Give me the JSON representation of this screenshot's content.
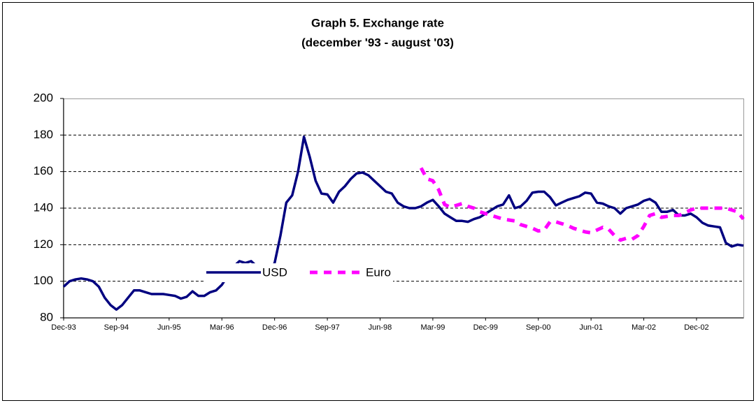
{
  "chart_data": {
    "type": "line",
    "title": "Graph 5. Exchange rate",
    "subtitle": "(december '93 - august '03)",
    "categories": [
      "Dec-93",
      null,
      null,
      null,
      null,
      null,
      null,
      null,
      null,
      "Sep-94",
      null,
      null,
      null,
      null,
      null,
      null,
      null,
      null,
      "Jun-95",
      null,
      null,
      null,
      null,
      null,
      null,
      null,
      null,
      "Mar-96",
      null,
      null,
      null,
      null,
      null,
      null,
      null,
      null,
      "Dec-96",
      null,
      null,
      null,
      null,
      null,
      null,
      null,
      null,
      "Sep-97",
      null,
      null,
      null,
      null,
      null,
      null,
      null,
      null,
      "Jun-98",
      null,
      null,
      null,
      null,
      null,
      null,
      null,
      null,
      "Mar-99",
      null,
      null,
      null,
      null,
      null,
      null,
      null,
      null,
      "Dec-99",
      null,
      null,
      null,
      null,
      null,
      null,
      null,
      null,
      "Sep-00",
      null,
      null,
      null,
      null,
      null,
      null,
      null,
      null,
      "Jun-01",
      null,
      null,
      null,
      null,
      null,
      null,
      null,
      null,
      "Mar-02",
      null,
      null,
      null,
      null,
      null,
      null,
      null,
      null,
      "Dec-02",
      null,
      null,
      null,
      null,
      null,
      null,
      null,
      null
    ],
    "series": [
      {
        "name": "USD",
        "color": "#000080",
        "values": [
          97,
          100,
          101,
          101.5,
          101,
          100,
          97,
          91,
          87,
          84.5,
          87,
          91,
          95,
          95,
          94,
          93,
          93,
          93,
          92.5,
          92,
          90.5,
          91.5,
          94.5,
          92,
          92,
          94,
          95,
          98,
          103,
          108,
          111,
          110,
          111,
          108,
          106,
          105,
          110,
          125,
          143,
          147,
          160,
          179,
          168,
          155,
          148,
          147.5,
          143,
          149,
          152,
          156,
          159,
          159.5,
          158,
          155,
          152,
          149,
          148,
          143,
          141,
          140,
          140,
          141,
          143,
          144.5,
          141,
          137,
          135,
          133,
          133,
          132.5,
          134,
          135,
          137,
          139,
          141,
          142,
          147,
          140,
          141,
          144,
          148.5,
          149,
          149,
          146,
          141.5,
          143,
          144.5,
          145.5,
          146.5,
          148.5,
          148,
          143,
          142.5,
          141,
          140,
          137,
          140,
          141,
          142,
          144,
          145,
          143,
          138,
          138,
          139,
          136,
          136,
          137,
          135,
          132,
          130.5,
          130,
          129.5,
          121,
          119,
          120,
          119.5
        ]
      },
      {
        "name": "Euro",
        "color": "#ff00ff",
        "values": [
          null,
          null,
          null,
          null,
          null,
          null,
          null,
          null,
          null,
          null,
          null,
          null,
          null,
          null,
          null,
          null,
          null,
          null,
          null,
          null,
          null,
          null,
          null,
          null,
          null,
          null,
          null,
          null,
          null,
          null,
          null,
          null,
          null,
          null,
          null,
          null,
          null,
          null,
          null,
          null,
          null,
          null,
          null,
          null,
          null,
          null,
          null,
          null,
          null,
          null,
          null,
          null,
          null,
          null,
          null,
          null,
          null,
          null,
          null,
          null,
          null,
          162,
          156,
          155,
          150,
          142,
          140.5,
          141.5,
          142.5,
          141,
          140,
          138,
          137,
          136,
          135,
          134,
          133.5,
          133,
          131,
          130,
          129,
          127.5,
          128,
          132.5,
          132.5,
          131.5,
          130.5,
          129,
          128,
          127,
          126.5,
          128,
          129.5,
          128.5,
          125,
          122.5,
          123.5,
          123,
          125,
          130,
          136,
          137,
          135,
          135.5,
          136,
          136,
          137.5,
          139,
          140,
          140,
          140,
          140,
          140,
          140,
          139,
          138,
          134
        ]
      }
    ],
    "ylim": [
      80,
      200
    ],
    "yticks": [
      80,
      100,
      120,
      140,
      160,
      180,
      200
    ],
    "grid": true
  }
}
